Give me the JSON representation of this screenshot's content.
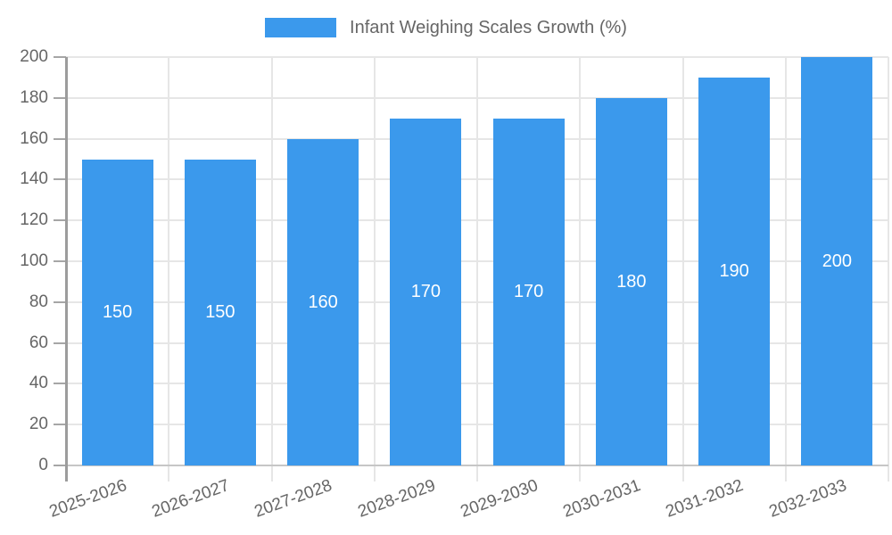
{
  "chart_data": {
    "type": "bar",
    "title": "",
    "legend_label": "Infant Weighing Scales Growth (%)",
    "legend_position": "top",
    "categories": [
      "2025-2026",
      "2026-2027",
      "2027-2028",
      "2028-2029",
      "2029-2030",
      "2030-2031",
      "2031-2032",
      "2032-2033"
    ],
    "values": [
      150,
      150,
      160,
      170,
      170,
      180,
      190,
      200
    ],
    "bar_labels": [
      "150",
      "150",
      "160",
      "170",
      "170",
      "180",
      "190",
      "200"
    ],
    "xlabel": "",
    "ylabel": "",
    "ylim": [
      0,
      200
    ],
    "ytick_step": 20,
    "yticks": [
      0,
      20,
      40,
      60,
      80,
      100,
      120,
      140,
      160,
      180,
      200
    ],
    "grid": true,
    "bar_color": "#3b99ec",
    "bar_label_color": "#ffffff",
    "axis_text_color": "#666666"
  }
}
